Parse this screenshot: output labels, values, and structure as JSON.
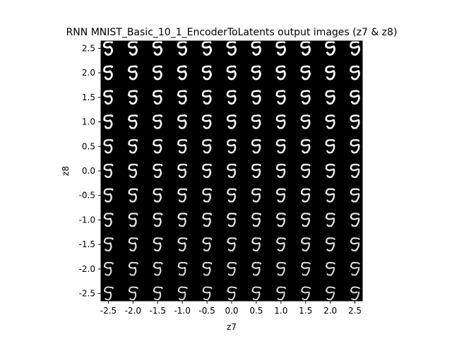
{
  "chart_data": {
    "type": "heatmap",
    "title": "RNN MNIST_Basic_10_1_EncoderToLatents output images (z7 & z8)",
    "xlabel": "z7",
    "ylabel": "z8",
    "xlim": [
      -2.65,
      2.65
    ],
    "ylim": [
      -2.65,
      2.65
    ],
    "x_ticks": [
      -2.5,
      -2.0,
      -1.5,
      -1.0,
      -0.5,
      0.0,
      0.5,
      1.0,
      1.5,
      2.0,
      2.5
    ],
    "x_tick_labels": [
      "-2.5",
      "-2.0",
      "-1.5",
      "-1.0",
      "-0.5",
      "0.0",
      "0.5",
      "1.0",
      "1.5",
      "2.0",
      "2.5"
    ],
    "y_ticks": [
      2.5,
      2.0,
      1.5,
      1.0,
      0.5,
      0.0,
      -0.5,
      -1.0,
      -1.5,
      -2.0,
      -2.5
    ],
    "y_tick_labels": [
      "2.5",
      "2.0",
      "1.5",
      "1.0",
      "0.5",
      "0.0",
      "-0.5",
      "-1.0",
      "-1.5",
      "-2.0",
      "-2.5"
    ],
    "grid": false,
    "background_color": "#000000",
    "digit_color": "#ffffff",
    "content": "11x11 grid of decoded digit images; columns correspond to z7 values and rows to z8 values"
  }
}
